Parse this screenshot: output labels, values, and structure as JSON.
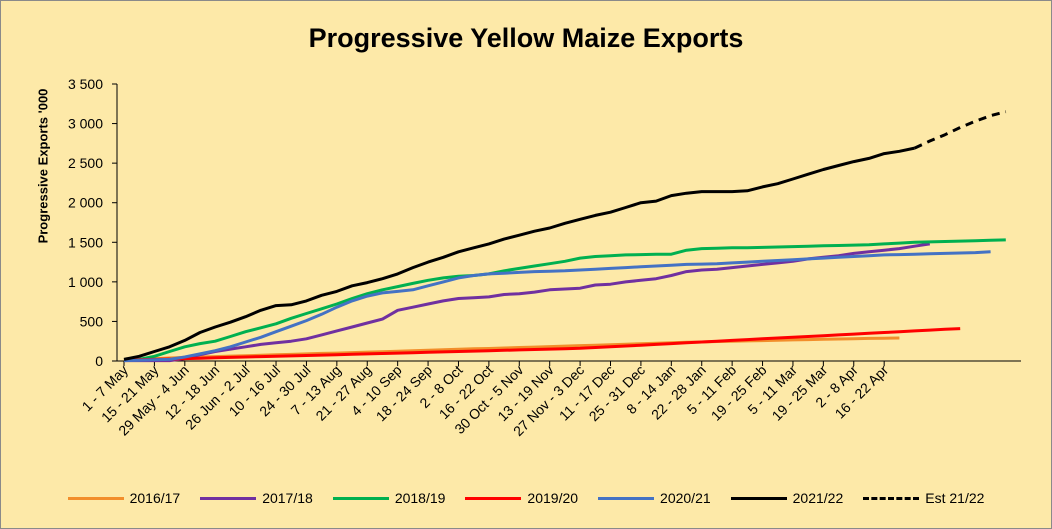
{
  "chart_data": {
    "type": "line",
    "title": "Progressive Yellow Maize Exports",
    "ylabel": "Progressive Exports '000",
    "xlabel": "",
    "ylim": [
      0,
      3500
    ],
    "yticks": [
      0,
      500,
      1000,
      1500,
      2000,
      2500,
      3000,
      3500
    ],
    "ytick_labels": [
      "0",
      "500",
      "1 000",
      "1 500",
      "2 000",
      "2 500",
      "3 000",
      "3 500"
    ],
    "grid": false,
    "legend_position": "bottom",
    "tick_labels": [
      "1 - 7 May",
      "15 - 21 May",
      "29 May - 4 Jun",
      "12 - 18 Jun",
      "26 Jun - 2 Jul",
      "10 - 16 Jul",
      "24 - 30 Jul",
      "7 - 13 Aug",
      "21 - 27 Aug",
      "4 - 10 Sep",
      "18 - 24 Sep",
      "2 - 8 Oct",
      "16 - 22 Oct",
      "30 Oct - 5 Nov",
      "13 - 19 Nov",
      "27 Nov - 3 Dec",
      "11 - 17 Dec",
      "25 - 31 Dec",
      "8 - 14 Jan",
      "22 - 28 Jan",
      "5 - 11 Feb",
      "19 - 25 Feb",
      "5 - 11 Mar",
      "19 - 25 Mar",
      "2 - 8 Apr",
      "16 - 22 Apr"
    ],
    "series": [
      {
        "name": "2016/17",
        "color": "#F28E2B",
        "dashed": false,
        "values": [
          10,
          18,
          28,
          38,
          46,
          50,
          56,
          62,
          66,
          72,
          78,
          84,
          90,
          96,
          100,
          106,
          112,
          118,
          124,
          130,
          136,
          142,
          148,
          154,
          158,
          164,
          170,
          176,
          182,
          188,
          194,
          200,
          206,
          212,
          218,
          224,
          230,
          236,
          240,
          246,
          250,
          254,
          258,
          262,
          266,
          270,
          274,
          278,
          282,
          285,
          288,
          290
        ]
      },
      {
        "name": "2017/18",
        "color": "#7030A0",
        "dashed": false,
        "values": [
          5,
          5,
          5,
          5,
          30,
          80,
          120,
          150,
          180,
          210,
          230,
          250,
          280,
          330,
          380,
          430,
          480,
          530,
          640,
          680,
          720,
          760,
          790,
          800,
          810,
          840,
          850,
          870,
          900,
          910,
          920,
          960,
          970,
          1000,
          1020,
          1040,
          1080,
          1130,
          1150,
          1160,
          1180,
          1200,
          1220,
          1240,
          1260,
          1290,
          1310,
          1330,
          1360,
          1380,
          1400,
          1420,
          1450,
          1480
        ]
      },
      {
        "name": "2018/19",
        "color": "#00B050",
        "dashed": false,
        "values": [
          10,
          20,
          60,
          120,
          180,
          220,
          250,
          310,
          370,
          420,
          470,
          540,
          600,
          660,
          720,
          790,
          850,
          900,
          940,
          980,
          1020,
          1050,
          1070,
          1080,
          1100,
          1140,
          1170,
          1200,
          1230,
          1260,
          1300,
          1320,
          1330,
          1340,
          1345,
          1350,
          1350,
          1400,
          1420,
          1425,
          1430,
          1432,
          1435,
          1440,
          1445,
          1450,
          1455,
          1460,
          1465,
          1470,
          1480,
          1490,
          1500,
          1505,
          1510,
          1515,
          1520,
          1525,
          1530
        ]
      },
      {
        "name": "2019/20",
        "color": "#FF0000",
        "dashed": false,
        "values": [
          10,
          15,
          20,
          25,
          30,
          35,
          40,
          45,
          50,
          55,
          60,
          65,
          70,
          75,
          80,
          85,
          90,
          95,
          100,
          105,
          110,
          115,
          120,
          125,
          130,
          135,
          140,
          145,
          150,
          155,
          160,
          170,
          180,
          190,
          200,
          210,
          220,
          230,
          240,
          250,
          260,
          270,
          280,
          290,
          300,
          310,
          320,
          330,
          340,
          350,
          360,
          370,
          380,
          390,
          400,
          410
        ]
      },
      {
        "name": "2020/21",
        "color": "#4472C4",
        "dashed": false,
        "values": [
          5,
          10,
          15,
          20,
          50,
          90,
          130,
          180,
          240,
          300,
          370,
          440,
          510,
          590,
          680,
          760,
          820,
          860,
          880,
          900,
          950,
          1000,
          1050,
          1080,
          1100,
          1110,
          1120,
          1130,
          1135,
          1140,
          1150,
          1160,
          1170,
          1180,
          1190,
          1200,
          1210,
          1220,
          1225,
          1230,
          1240,
          1250,
          1260,
          1270,
          1280,
          1290,
          1300,
          1310,
          1320,
          1330,
          1340,
          1345,
          1350,
          1355,
          1360,
          1365,
          1370,
          1380
        ]
      },
      {
        "name": "2021/22",
        "color": "#000000",
        "dashed": false,
        "values": [
          20,
          60,
          120,
          180,
          260,
          360,
          430,
          490,
          560,
          640,
          700,
          710,
          760,
          830,
          880,
          950,
          990,
          1040,
          1100,
          1180,
          1250,
          1310,
          1380,
          1430,
          1480,
          1540,
          1590,
          1640,
          1680,
          1740,
          1790,
          1840,
          1880,
          1940,
          2000,
          2020,
          2090,
          2120,
          2140,
          2140,
          2140,
          2150,
          2200,
          2240,
          2300,
          2360,
          2420,
          2470,
          2520,
          2560,
          2620,
          2650,
          2690
        ]
      },
      {
        "name": "Est 21/22",
        "color": "#000000",
        "dashed": true,
        "values": [
          2690,
          2780,
          2860,
          2950,
          3030,
          3100,
          3150
        ]
      }
    ],
    "series_start_index": [
      0,
      0,
      0,
      0,
      0,
      0,
      52
    ]
  }
}
